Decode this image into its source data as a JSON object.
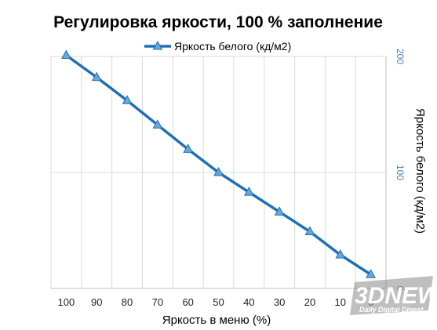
{
  "chart_data": {
    "type": "line",
    "title": "Регулировка яркости, 100 % заполнение",
    "xlabel": "Яркость в меню (%)",
    "ylabel": "Яркость белого (кд/м2)",
    "x": [
      100,
      90,
      80,
      70,
      60,
      50,
      40,
      30,
      20,
      10,
      0
    ],
    "x_reversed": true,
    "xlim": [
      0,
      100
    ],
    "ylim": [
      0,
      200
    ],
    "y_ticks": [
      100,
      200
    ],
    "y_axis_side": "right",
    "grid": "vertical",
    "legend_position": "top",
    "series": [
      {
        "name": "Яркость белого (кд/м2)",
        "color": "#1f6fb4",
        "marker": "triangle",
        "values": [
          201,
          182,
          162,
          141,
          120,
          100,
          83,
          66,
          49,
          29,
          12
        ]
      }
    ]
  },
  "watermark": {
    "logo": "3DNEWS",
    "tagline": "Daily Digital Digest"
  },
  "colors": {
    "series": "#1f6fb4",
    "marker_fill": "#6aa6d8",
    "y_tick_text": "#4a7ebb",
    "grid": "#d9d9d9",
    "axis": "#bfbfbf"
  }
}
